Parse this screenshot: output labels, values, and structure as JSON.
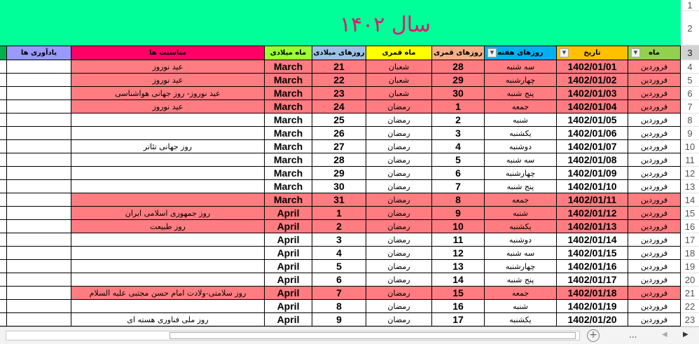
{
  "title": "سال ۱۴۰۲",
  "colors": {
    "title_bg": "#00ff99",
    "title_text": "#e0186c",
    "holiday_row": "#ff7c80"
  },
  "headers": {
    "reminders": "یادآوری ها",
    "events": "مناسبت ها",
    "gregorian_month": "ماه میلادی",
    "gregorian_day": "روزهای میلادی",
    "lunar_month": "ماه قمری",
    "lunar_day": "روزهای قمری",
    "weekday": "روزهای هفته",
    "date": "تاریخ",
    "month": "ماه"
  },
  "rows": [
    {
      "num": "4",
      "month": "فروردین",
      "date": "1402/01/01",
      "weekday": "سه شنبه",
      "lday": "28",
      "lmonth": "شعبان",
      "gday": "21",
      "gmonth": "March",
      "event": "عید نوروز",
      "holiday": true
    },
    {
      "num": "5",
      "month": "فروردین",
      "date": "1402/01/02",
      "weekday": "چهارشنبه",
      "lday": "29",
      "lmonth": "شعبان",
      "gday": "22",
      "gmonth": "March",
      "event": "عید نوروز",
      "holiday": true
    },
    {
      "num": "6",
      "month": "فروردین",
      "date": "1402/01/03",
      "weekday": "پنج شنبه",
      "lday": "30",
      "lmonth": "شعبان",
      "gday": "23",
      "gmonth": "March",
      "event": "عید نوروز- روز جهانی هواشناسی",
      "holiday": true
    },
    {
      "num": "7",
      "month": "فروردین",
      "date": "1402/01/04",
      "weekday": "جمعه",
      "lday": "1",
      "lmonth": "رمضان",
      "gday": "24",
      "gmonth": "March",
      "event": "عید نوروز",
      "holiday": true
    },
    {
      "num": "8",
      "month": "فروردین",
      "date": "1402/01/05",
      "weekday": "شنبه",
      "lday": "2",
      "lmonth": "رمضان",
      "gday": "25",
      "gmonth": "March",
      "event": "",
      "holiday": false
    },
    {
      "num": "9",
      "month": "فروردین",
      "date": "1402/01/06",
      "weekday": "یکشنبه",
      "lday": "3",
      "lmonth": "رمضان",
      "gday": "26",
      "gmonth": "March",
      "event": "",
      "holiday": false
    },
    {
      "num": "10",
      "month": "فروردین",
      "date": "1402/01/07",
      "weekday": "دوشنبه",
      "lday": "4",
      "lmonth": "رمضان",
      "gday": "27",
      "gmonth": "March",
      "event": "روز جهانی تئاتر",
      "holiday": false
    },
    {
      "num": "11",
      "month": "فروردین",
      "date": "1402/01/08",
      "weekday": "سه شنبه",
      "lday": "5",
      "lmonth": "رمضان",
      "gday": "28",
      "gmonth": "March",
      "event": "",
      "holiday": false
    },
    {
      "num": "12",
      "month": "فروردین",
      "date": "1402/01/09",
      "weekday": "چهارشنبه",
      "lday": "6",
      "lmonth": "رمضان",
      "gday": "29",
      "gmonth": "March",
      "event": "",
      "holiday": false
    },
    {
      "num": "13",
      "month": "فروردین",
      "date": "1402/01/10",
      "weekday": "پنج شنبه",
      "lday": "7",
      "lmonth": "رمضان",
      "gday": "30",
      "gmonth": "March",
      "event": "",
      "holiday": false
    },
    {
      "num": "14",
      "month": "فروردین",
      "date": "1402/01/11",
      "weekday": "جمعه",
      "lday": "8",
      "lmonth": "رمضان",
      "gday": "31",
      "gmonth": "March",
      "event": "",
      "holiday": true
    },
    {
      "num": "15",
      "month": "فروردین",
      "date": "1402/01/12",
      "weekday": "شنبه",
      "lday": "9",
      "lmonth": "رمضان",
      "gday": "1",
      "gmonth": "April",
      "event": "روز جمهوری اسلامی ایران",
      "holiday": true
    },
    {
      "num": "16",
      "month": "فروردین",
      "date": "1402/01/13",
      "weekday": "یکشنبه",
      "lday": "10",
      "lmonth": "رمضان",
      "gday": "2",
      "gmonth": "April",
      "event": "روز طبیعت",
      "holiday": true
    },
    {
      "num": "17",
      "month": "فروردین",
      "date": "1402/01/14",
      "weekday": "دوشنبه",
      "lday": "11",
      "lmonth": "رمضان",
      "gday": "3",
      "gmonth": "April",
      "event": "",
      "holiday": false
    },
    {
      "num": "18",
      "month": "فروردین",
      "date": "1402/01/15",
      "weekday": "سه شنبه",
      "lday": "12",
      "lmonth": "رمضان",
      "gday": "4",
      "gmonth": "April",
      "event": "",
      "holiday": false
    },
    {
      "num": "19",
      "month": "فروردین",
      "date": "1402/01/16",
      "weekday": "چهارشنبه",
      "lday": "13",
      "lmonth": "رمضان",
      "gday": "5",
      "gmonth": "April",
      "event": "",
      "holiday": false
    },
    {
      "num": "20",
      "month": "فروردین",
      "date": "1402/01/17",
      "weekday": "پنج شنبه",
      "lday": "14",
      "lmonth": "رمضان",
      "gday": "6",
      "gmonth": "April",
      "event": "",
      "holiday": false
    },
    {
      "num": "21",
      "month": "فروردین",
      "date": "1402/01/18",
      "weekday": "جمعه",
      "lday": "15",
      "lmonth": "رمضان",
      "gday": "7",
      "gmonth": "April",
      "event": "روز سلامتی-ولادت امام حسن مجتبی علیه السلام",
      "holiday": true
    },
    {
      "num": "22",
      "month": "فروردین",
      "date": "1402/01/19",
      "weekday": "شنبه",
      "lday": "16",
      "lmonth": "رمضان",
      "gday": "8",
      "gmonth": "April",
      "event": "",
      "holiday": false
    },
    {
      "num": "23",
      "month": "فروردین",
      "date": "1402/01/20",
      "weekday": "یکشنبه",
      "lday": "17",
      "lmonth": "رمضان",
      "gday": "9",
      "gmonth": "April",
      "event": "روز ملی فناوری هسته ای",
      "holiday": false
    }
  ],
  "row_numbers": {
    "r1": "1",
    "r2": "2",
    "r3": "3"
  },
  "bottom": {
    "more": "...",
    "add_sheet": "+"
  }
}
